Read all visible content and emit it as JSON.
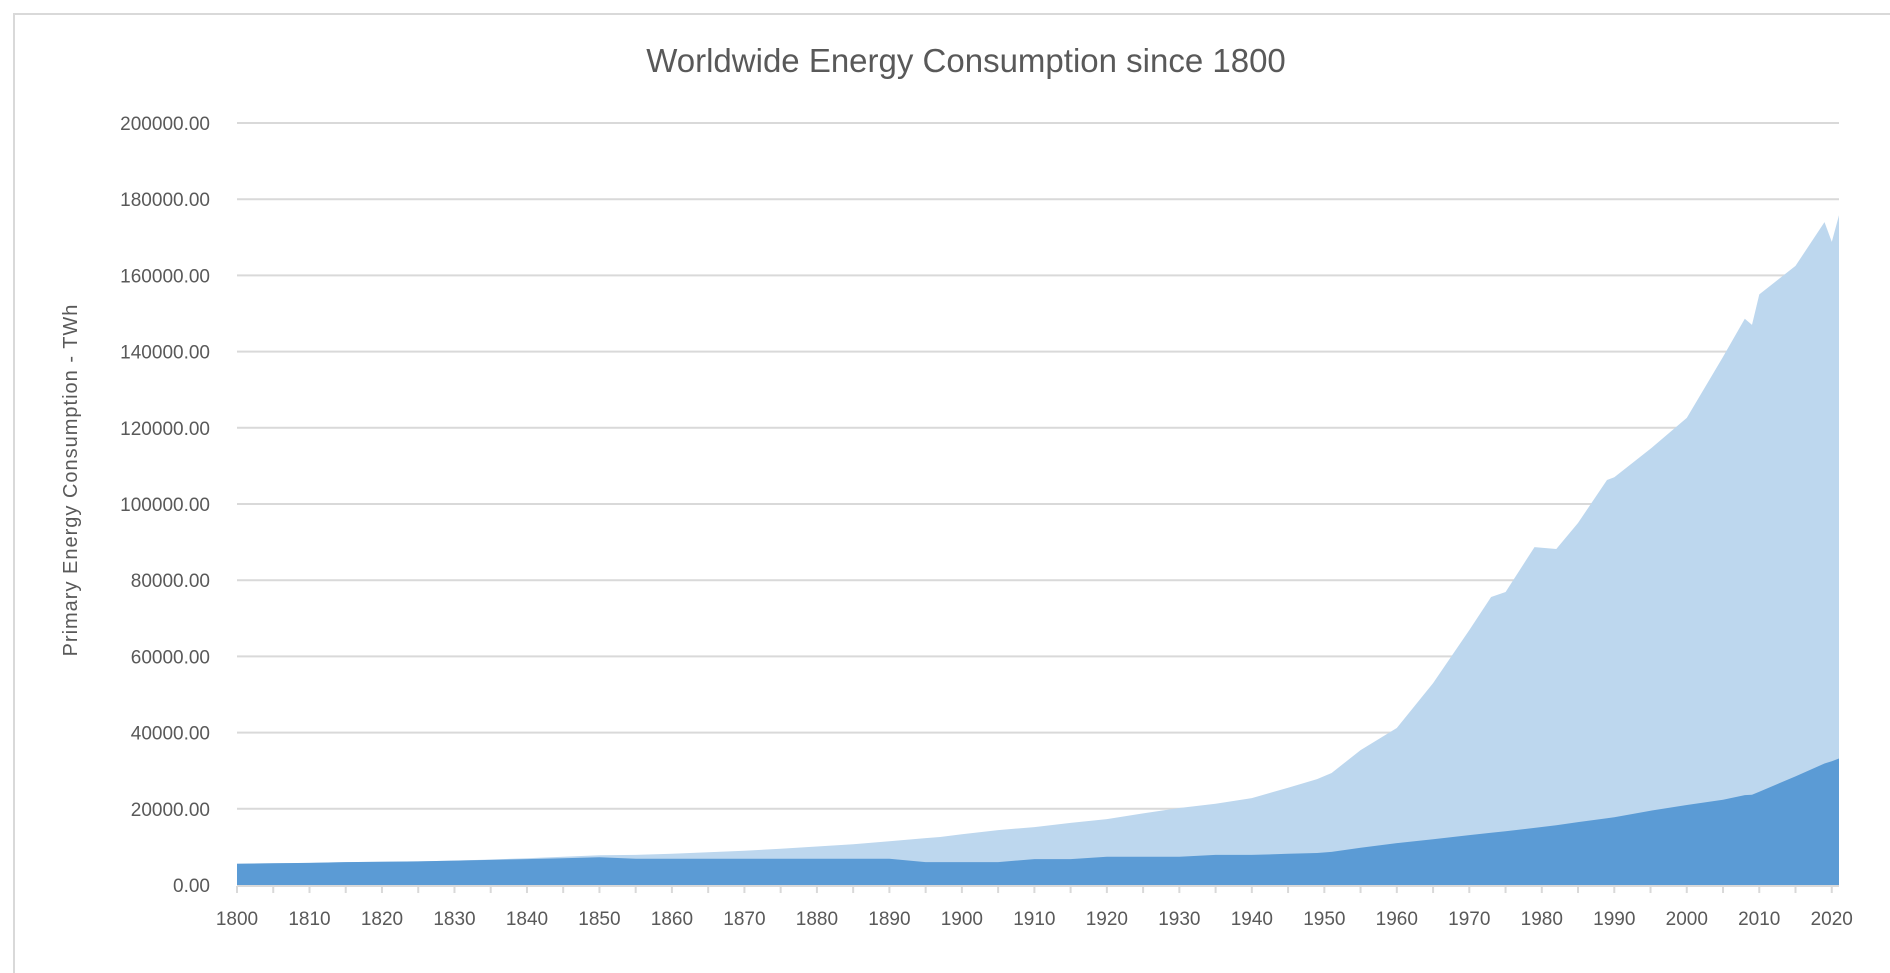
{
  "chart_data": {
    "type": "area",
    "stacked": true,
    "title": "Worldwide Energy Consumption since 1800",
    "xlabel": "",
    "ylabel": "Primary Energy Consumption  - TWh",
    "ylim": [
      0,
      200000
    ],
    "xlim": [
      1800,
      2021
    ],
    "grid": true,
    "legend": "none",
    "y_ticks": [
      "0.00",
      "20000.00",
      "40000.00",
      "60000.00",
      "80000.00",
      "100000.00",
      "120000.00",
      "140000.00",
      "160000.00",
      "180000.00",
      "200000.00"
    ],
    "x_ticks": [
      "1800",
      "1810",
      "1820",
      "1830",
      "1840",
      "1850",
      "1860",
      "1870",
      "1880",
      "1890",
      "1900",
      "1910",
      "1920",
      "1930",
      "1940",
      "1950",
      "1960",
      "1970",
      "1980",
      "1990",
      "2000",
      "2010",
      "2020"
    ],
    "colors": {
      "lower": "#5b9bd5",
      "upper": "#bdd7ee"
    },
    "series_points": {
      "x": [
        1800,
        1805,
        1810,
        1815,
        1820,
        1825,
        1830,
        1835,
        1840,
        1845,
        1850,
        1855,
        1860,
        1865,
        1870,
        1875,
        1880,
        1885,
        1890,
        1895,
        1897,
        1900,
        1905,
        1910,
        1915,
        1920,
        1925,
        1930,
        1935,
        1940,
        1945,
        1949,
        1951,
        1955,
        1960,
        1965,
        1970,
        1973,
        1975,
        1979,
        1982,
        1985,
        1989,
        1990,
        1995,
        2000,
        2005,
        2008,
        2009,
        2010,
        2015,
        2019,
        2020,
        2021
      ],
      "lower_values": [
        5600,
        5700,
        5800,
        6000,
        6100,
        6200,
        6400,
        6600,
        6800,
        7000,
        7300,
        6900,
        6900,
        6900,
        6900,
        6900,
        6900,
        6900,
        6900,
        6000,
        6000,
        6000,
        6000,
        6800,
        6800,
        7400,
        7400,
        7400,
        7900,
        7900,
        8200,
        8400,
        8700,
        9800,
        11000,
        12000,
        13100,
        13700,
        14100,
        15000,
        15700,
        16500,
        17500,
        17800,
        19500,
        21000,
        22400,
        23600,
        23700,
        24500,
        28500,
        31900,
        32500,
        33200
      ],
      "total_values": [
        5600,
        5700,
        5800,
        6000,
        6100,
        6200,
        6400,
        6700,
        7000,
        7400,
        7800,
        7900,
        8200,
        8600,
        9000,
        9500,
        10100,
        10700,
        11500,
        12300,
        12600,
        13300,
        14400,
        15200,
        16300,
        17300,
        18800,
        20200,
        21300,
        22800,
        25500,
        27800,
        29400,
        35400,
        41200,
        53000,
        66900,
        75600,
        76900,
        88700,
        88200,
        95000,
        106300,
        107000,
        114500,
        122600,
        138600,
        148600,
        147000,
        155000,
        162500,
        174000,
        168800,
        175800
      ]
    }
  }
}
